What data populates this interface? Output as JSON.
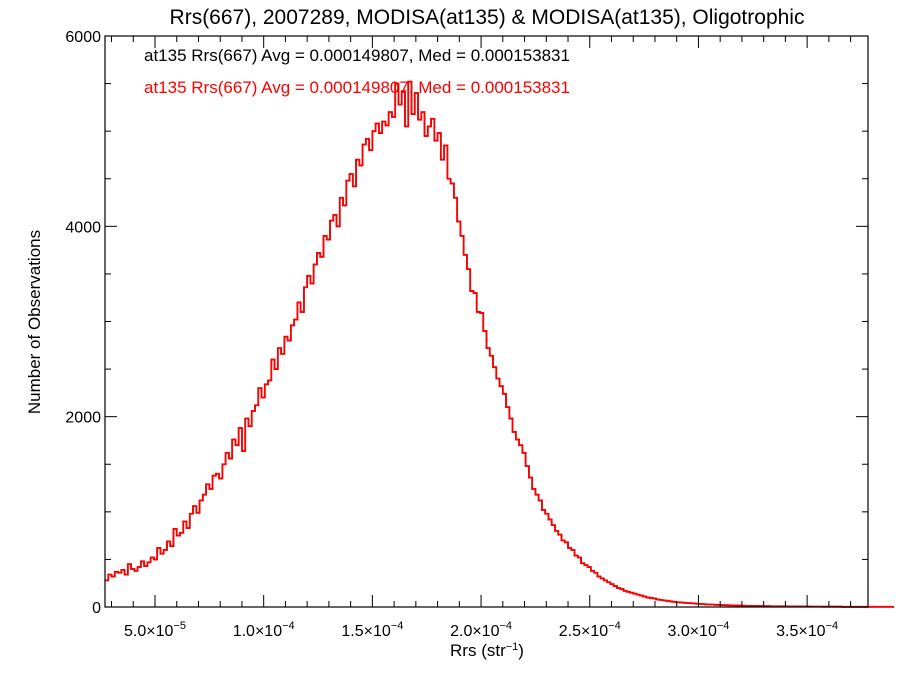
{
  "chart_data": {
    "type": "histogram",
    "title": "Rrs(667), 2007289, MODISA(at135) & MODISA(at135), Oligotrophic",
    "xlabel": "Rrs (str",
    "xlabel_sup": "−1",
    "xlabel_close": ")",
    "ylabel": "Number of Observations",
    "xlim": [
      2.7e-05,
      0.000378
    ],
    "ylim": [
      0,
      6000
    ],
    "xticks": [
      {
        "value": 5e-05,
        "label": "5.0×10",
        "exp": "−5"
      },
      {
        "value": 0.0001,
        "label": "1.0×10",
        "exp": "−4"
      },
      {
        "value": 0.00015,
        "label": "1.5×10",
        "exp": "−4"
      },
      {
        "value": 0.0002,
        "label": "2.0×10",
        "exp": "−4"
      },
      {
        "value": 0.00025,
        "label": "2.5×10",
        "exp": "−4"
      },
      {
        "value": 0.0003,
        "label": "3.0×10",
        "exp": "−4"
      },
      {
        "value": 0.00035,
        "label": "3.5×10",
        "exp": "−4"
      }
    ],
    "yticks": [
      {
        "value": 0,
        "label": "0"
      },
      {
        "value": 2000,
        "label": "2000"
      },
      {
        "value": 4000,
        "label": "4000"
      },
      {
        "value": 6000,
        "label": "6000"
      }
    ],
    "bin_start": 2.7e-05,
    "bin_width": 1.5e-06,
    "series": [
      {
        "name": "at135 Rrs(667) Avg = 0.000149807, Med = 0.000153831",
        "color": "#000000",
        "values": [
          280,
          340,
          320,
          370,
          360,
          390,
          340,
          450,
          400,
          380,
          420,
          480,
          430,
          470,
          520,
          500,
          620,
          560,
          600,
          690,
          640,
          820,
          750,
          780,
          900,
          830,
          980,
          1060,
          990,
          1120,
          1180,
          1290,
          1240,
          1380,
          1400,
          1350,
          1500,
          1620,
          1560,
          1760,
          1700,
          1880,
          1640,
          1980,
          1900,
          2060,
          2120,
          2300,
          2200,
          2340,
          2380,
          2600,
          2500,
          2720,
          2660,
          2840,
          2800,
          2960,
          3020,
          3200,
          3100,
          3360,
          3480,
          3400,
          3600,
          3720,
          3680,
          3900,
          3860,
          4060,
          4120,
          4000,
          4300,
          4220,
          4480,
          4550,
          4420,
          4700,
          4640,
          4860,
          4920,
          4800,
          5000,
          5080,
          4980,
          5100,
          5060,
          5200,
          5150,
          5500,
          5280,
          5420,
          5050,
          5520,
          5180,
          5400,
          5120,
          5200,
          4950,
          5050,
          5130,
          4900,
          4980,
          4700,
          4850,
          4500,
          4450,
          4300,
          4050,
          3900,
          3700,
          3550,
          3320,
          3300,
          3100,
          3090,
          2900,
          2720,
          2640,
          2520,
          2400,
          2320,
          2240,
          2100,
          1980,
          1840,
          1760,
          1700,
          1620,
          1480,
          1360,
          1240,
          1180,
          1120,
          1020,
          980,
          920,
          860,
          800,
          760,
          700,
          680,
          620,
          600,
          540,
          520,
          460,
          440,
          420,
          380,
          360,
          320,
          300,
          280,
          260,
          240,
          220,
          200,
          190,
          170,
          160,
          150,
          140,
          130,
          120,
          110,
          100,
          95,
          90,
          80,
          75,
          70,
          65,
          60,
          55,
          50,
          48,
          45,
          42,
          40,
          38,
          35,
          33,
          30,
          28,
          26,
          25,
          23,
          22,
          20,
          19,
          18,
          17,
          16,
          15,
          14,
          13,
          12,
          12,
          11,
          10,
          10,
          9,
          9,
          8,
          8,
          7,
          7,
          7,
          6,
          6,
          6,
          5,
          5,
          5,
          5,
          4,
          4,
          4,
          4,
          3,
          3,
          3,
          3,
          3,
          3,
          2,
          2,
          2,
          2,
          2,
          2,
          2,
          2,
          2,
          2,
          2,
          2,
          2,
          2,
          2,
          2,
          2
        ]
      },
      {
        "name": "at135 Rrs(667) Avg = 0.000149807, Med = 0.000153831",
        "color": "#ff0000",
        "values": [
          280,
          340,
          320,
          370,
          360,
          390,
          340,
          450,
          400,
          380,
          420,
          480,
          430,
          470,
          520,
          500,
          620,
          560,
          600,
          690,
          640,
          820,
          750,
          780,
          900,
          830,
          980,
          1060,
          990,
          1120,
          1180,
          1290,
          1240,
          1380,
          1400,
          1350,
          1500,
          1620,
          1560,
          1760,
          1700,
          1880,
          1640,
          1980,
          1900,
          2060,
          2120,
          2300,
          2200,
          2340,
          2380,
          2600,
          2500,
          2720,
          2660,
          2840,
          2800,
          2960,
          3020,
          3200,
          3100,
          3360,
          3480,
          3400,
          3600,
          3720,
          3680,
          3900,
          3860,
          4060,
          4120,
          4000,
          4300,
          4220,
          4480,
          4550,
          4420,
          4700,
          4640,
          4860,
          4920,
          4800,
          5000,
          5080,
          4980,
          5100,
          5060,
          5200,
          5150,
          5500,
          5280,
          5420,
          5050,
          5520,
          5180,
          5400,
          5120,
          5200,
          4950,
          5050,
          5130,
          4900,
          4980,
          4700,
          4850,
          4500,
          4450,
          4300,
          4050,
          3900,
          3700,
          3550,
          3320,
          3300,
          3100,
          3090,
          2900,
          2720,
          2640,
          2520,
          2400,
          2320,
          2240,
          2100,
          1980,
          1840,
          1760,
          1700,
          1620,
          1480,
          1360,
          1240,
          1180,
          1120,
          1020,
          980,
          920,
          860,
          800,
          760,
          700,
          680,
          620,
          600,
          540,
          520,
          460,
          440,
          420,
          380,
          360,
          320,
          300,
          280,
          260,
          240,
          220,
          200,
          190,
          170,
          160,
          150,
          140,
          130,
          120,
          110,
          100,
          95,
          90,
          80,
          75,
          70,
          65,
          60,
          55,
          50,
          48,
          45,
          42,
          40,
          38,
          35,
          33,
          30,
          28,
          26,
          25,
          23,
          22,
          20,
          19,
          18,
          17,
          16,
          15,
          14,
          13,
          12,
          12,
          11,
          10,
          10,
          9,
          9,
          8,
          8,
          7,
          7,
          7,
          6,
          6,
          6,
          5,
          5,
          5,
          5,
          4,
          4,
          4,
          4,
          3,
          3,
          3,
          3,
          3,
          3,
          2,
          2,
          2,
          2,
          2,
          2,
          2,
          2,
          2,
          2,
          2,
          2,
          2,
          2,
          2,
          2,
          2
        ]
      }
    ],
    "grid": false,
    "legend_position": "top-left"
  }
}
